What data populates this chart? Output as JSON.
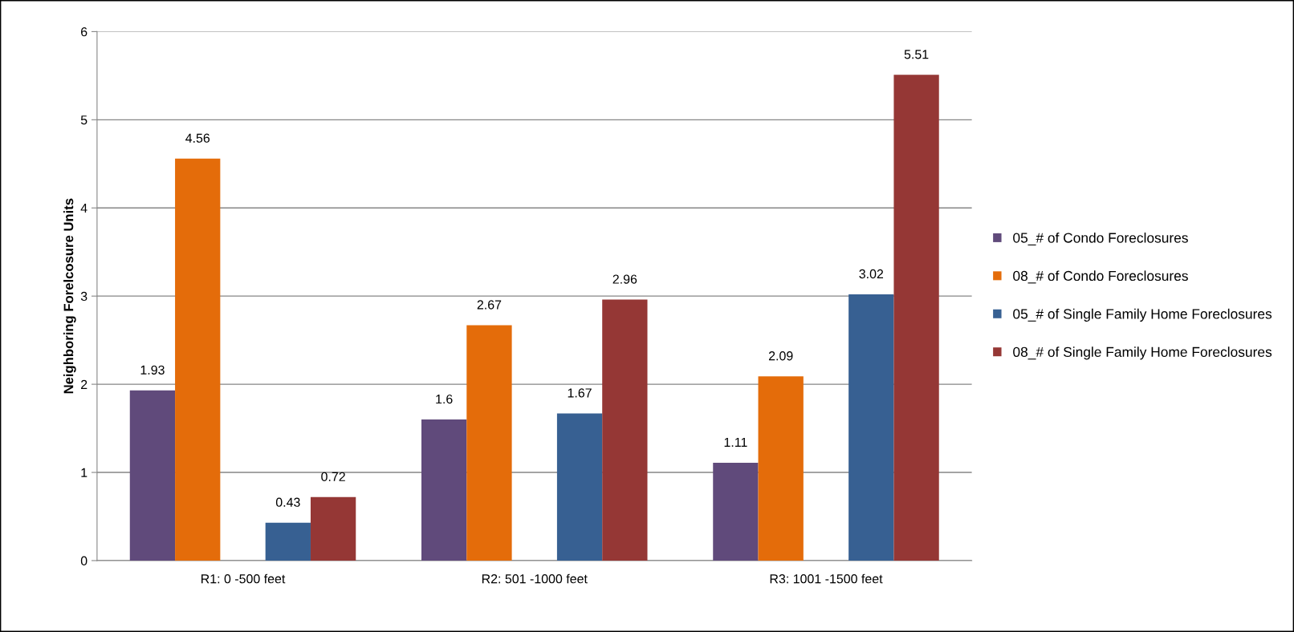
{
  "chart_data": {
    "type": "bar",
    "ylabel": "Neighboring Forelcosure Units",
    "categories": [
      "R1: 0 -500 feet",
      "R2: 501 -1000 feet",
      "R3: 1001 -1500 feet"
    ],
    "series": [
      {
        "name": "05_# of Condo Foreclosures",
        "color": "#604a7b",
        "values": [
          1.93,
          1.6,
          1.11
        ]
      },
      {
        "name": "08_# of Condo Foreclosures",
        "color": "#e46c0a",
        "values": [
          4.56,
          2.67,
          2.09
        ]
      },
      {
        "name": "05_# of Single Family Home Foreclosures",
        "color": "#376092",
        "values": [
          0.43,
          1.67,
          3.02
        ]
      },
      {
        "name": "08_# of Single Family Home Foreclosures",
        "color": "#953735",
        "values": [
          0.72,
          2.96,
          5.51
        ]
      }
    ],
    "ylim": [
      0,
      6
    ],
    "yticks": [
      0,
      1,
      2,
      3,
      4,
      5,
      6
    ],
    "grid": "y",
    "legend": "right",
    "data_labels": true
  }
}
